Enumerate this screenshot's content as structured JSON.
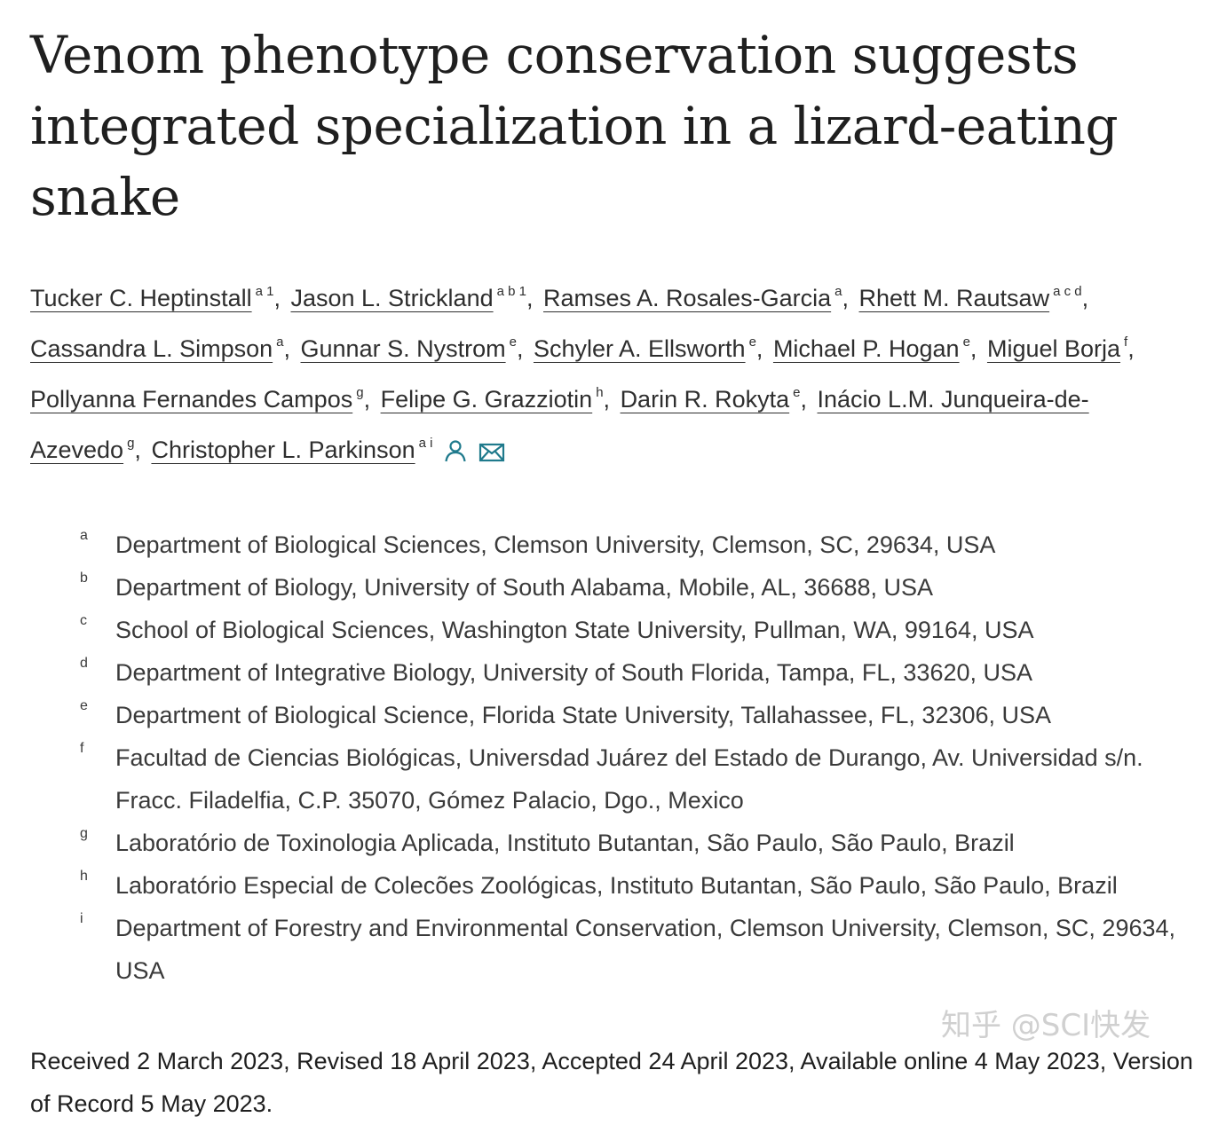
{
  "article": {
    "title": "Venom phenotype conservation suggests integrated specialization in a lizard-eating snake"
  },
  "authors": [
    {
      "name": "Tucker C. Heptinstall",
      "sup": "a 1"
    },
    {
      "name": "Jason L. Strickland",
      "sup": "a b 1"
    },
    {
      "name": "Ramses A. Rosales-Garcia",
      "sup": "a"
    },
    {
      "name": "Rhett M. Rautsaw",
      "sup": "a c d"
    },
    {
      "name": "Cassandra L. Simpson",
      "sup": "a"
    },
    {
      "name": "Gunnar S. Nystrom",
      "sup": "e"
    },
    {
      "name": "Schyler A. Ellsworth",
      "sup": "e"
    },
    {
      "name": "Michael P. Hogan",
      "sup": "e"
    },
    {
      "name": "Miguel Borja",
      "sup": "f"
    },
    {
      "name": "Pollyanna Fernandes Campos",
      "sup": "g"
    },
    {
      "name": "Felipe G. Grazziotin",
      "sup": "h"
    },
    {
      "name": "Darin R. Rokyta",
      "sup": "e"
    },
    {
      "name": "Inácio L.M. Junqueira-de-Azevedo",
      "sup": "g"
    },
    {
      "name": "Christopher L. Parkinson",
      "sup": "a i"
    }
  ],
  "icons": {
    "person": "person-icon",
    "mail": "mail-icon",
    "accent": "#1f7a8c"
  },
  "affiliations": [
    {
      "letter": "a",
      "text": "Department of Biological Sciences, Clemson University, Clemson, SC, 29634, USA"
    },
    {
      "letter": "b",
      "text": "Department of Biology, University of South Alabama, Mobile, AL, 36688, USA"
    },
    {
      "letter": "c",
      "text": "School of Biological Sciences, Washington State University, Pullman, WA, 99164, USA"
    },
    {
      "letter": "d",
      "text": "Department of Integrative Biology, University of South Florida, Tampa, FL, 33620, USA"
    },
    {
      "letter": "e",
      "text": "Department of Biological Science, Florida State University, Tallahassee, FL, 32306, USA"
    },
    {
      "letter": "f",
      "text": "Facultad de Ciencias Biológicas, Universdad Juárez del Estado de Durango, Av. Universidad s/n. Fracc. Filadelfia, C.P. 35070, Gómez Palacio, Dgo., Mexico"
    },
    {
      "letter": "g",
      "text": "Laboratório de Toxinologia Aplicada, Instituto Butantan, São Paulo, São Paulo, Brazil"
    },
    {
      "letter": "h",
      "text": "Laboratório Especial de Colecões Zoológicas, Instituto Butantan, São Paulo, São Paulo, Brazil"
    },
    {
      "letter": "i",
      "text": "Department of Forestry and Environmental Conservation, Clemson University, Clemson, SC, 29634, USA"
    }
  ],
  "history": {
    "text": "Received 2 March 2023, Revised 18 April 2023, Accepted 24 April 2023, Available online 4 May 2023, Version of Record 5 May 2023."
  },
  "watermark": {
    "text": "知乎 @SCI快发"
  }
}
